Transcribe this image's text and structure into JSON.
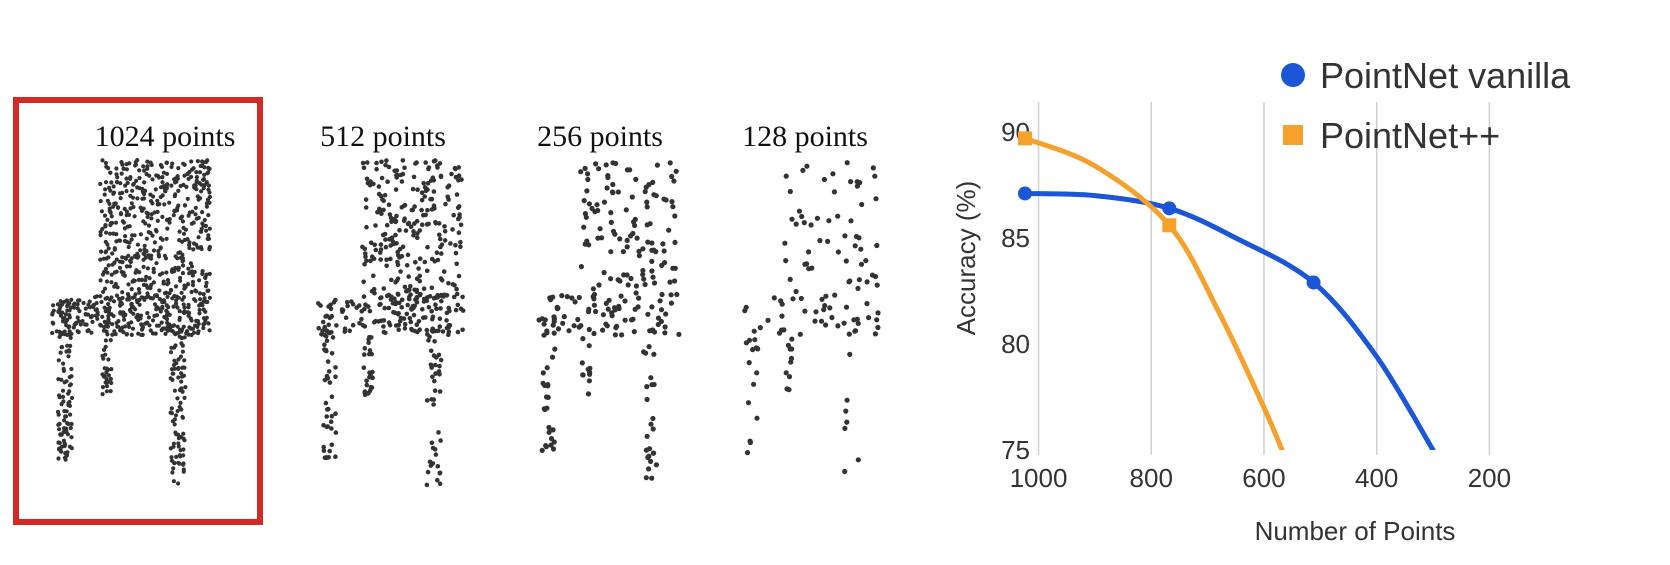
{
  "panels": [
    {
      "label": "1024 points",
      "count": 1024
    },
    {
      "label": "512 points",
      "count": 512
    },
    {
      "label": "256 points",
      "count": 256
    },
    {
      "label": "128 points",
      "count": 128
    }
  ],
  "colors": {
    "highlight": "#d42a26",
    "vanilla": "#1a56d6",
    "plusplus": "#f5a12b",
    "points": "#333333",
    "grid": "#d0d0d0"
  },
  "chart_data": {
    "type": "line",
    "xlabel": "Number of Points",
    "ylabel": "Accuracy (%)",
    "xlim": [
      1024,
      128
    ],
    "ylim": [
      75,
      90
    ],
    "x_ticks": [
      1000,
      800,
      600,
      400,
      200
    ],
    "y_ticks": [
      90,
      85,
      80,
      75
    ],
    "grid": "vertical",
    "legend": "top-right",
    "series": [
      {
        "name": "PointNet vanilla",
        "marker": "circle",
        "points": [
          [
            1024,
            87.1
          ],
          [
            768,
            86.4
          ],
          [
            512,
            82.9
          ]
        ],
        "curve": [
          [
            1024,
            87.1
          ],
          [
            900,
            87.0
          ],
          [
            768,
            86.4
          ],
          [
            650,
            85.0
          ],
          [
            512,
            82.9
          ],
          [
            400,
            79.4
          ],
          [
            300,
            75.0
          ]
        ]
      },
      {
        "name": "PointNet++",
        "marker": "square",
        "points": [
          [
            1024,
            89.7
          ],
          [
            768,
            85.6
          ]
        ],
        "curve": [
          [
            1024,
            89.7
          ],
          [
            900,
            88.4
          ],
          [
            768,
            85.6
          ],
          [
            680,
            81.5
          ],
          [
            600,
            77.0
          ],
          [
            568,
            75.0
          ]
        ]
      }
    ]
  }
}
